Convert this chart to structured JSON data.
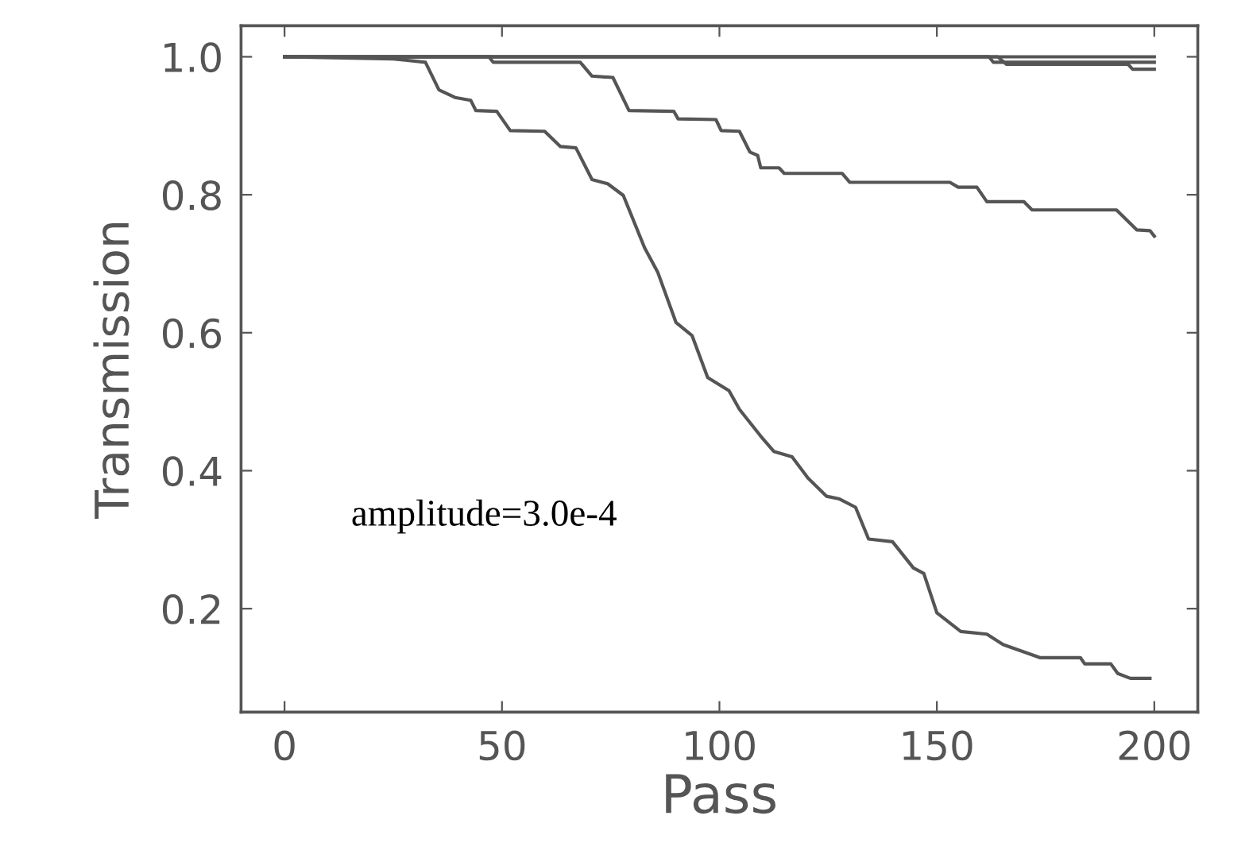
{
  "chart_data": {
    "type": "line",
    "xlabel": "Pass",
    "ylabel": "Transmission",
    "annotations": [
      "amplitude=3.0e-4"
    ],
    "xlim": [
      -10,
      210
    ],
    "ylim": [
      0.05,
      1.045
    ],
    "xticks": [
      0,
      50,
      100,
      150,
      200
    ],
    "yticks": [
      0.2,
      0.4,
      0.6,
      0.8,
      {
        "value": 1.0,
        "label": "1.0"
      }
    ],
    "grid": false,
    "legend": false,
    "marker": "none",
    "line_style": "solid",
    "series": [
      {
        "color": "#555555",
        "x": [
          0,
          200
        ],
        "values": [
          1.0,
          1.0
        ]
      },
      {
        "color": "#555555",
        "x": [
          0,
          162,
          163,
          200
        ],
        "values": [
          1.0,
          1.0,
          0.992,
          0.992
        ]
      },
      {
        "color": "#555555",
        "x": [
          0,
          164,
          166,
          194,
          195,
          200
        ],
        "values": [
          1.0,
          1.0,
          0.989,
          0.989,
          0.982,
          0.982
        ]
      },
      {
        "color": "#555555",
        "x": [
          0,
          47,
          48,
          68,
          70.7,
          75.5,
          79.2,
          89.5,
          90.5,
          99.2,
          100.4,
          104.6,
          107,
          108.8,
          109.5,
          113.7,
          114.9,
          128.2,
          130,
          153,
          154.9,
          159.2,
          161.5,
          170,
          171.9,
          191.3,
          196,
          199,
          200
        ],
        "values": [
          1.0,
          1.0,
          0.992,
          0.992,
          0.972,
          0.97,
          0.922,
          0.921,
          0.91,
          0.909,
          0.893,
          0.892,
          0.862,
          0.857,
          0.839,
          0.839,
          0.831,
          0.831,
          0.818,
          0.818,
          0.811,
          0.811,
          0.79,
          0.79,
          0.778,
          0.778,
          0.749,
          0.748,
          0.74
        ]
      },
      {
        "color": "#555555",
        "x": [
          0,
          25,
          32.4,
          35.5,
          39.2,
          42.8,
          44,
          48.8,
          51.9,
          59.8,
          63.4,
          67,
          70.7,
          74.3,
          77.9,
          82.8,
          85.8,
          90,
          93.7,
          97.3,
          102.2,
          104.6,
          109.5,
          112.5,
          116.7,
          120.4,
          124.6,
          127.6,
          131.3,
          134.3,
          139.8,
          144.6,
          147,
          150,
          155.5,
          161.5,
          165.2,
          168.8,
          173.7,
          183,
          184,
          190,
          191.6,
          194.5,
          199
        ],
        "values": [
          1.0,
          0.997,
          0.992,
          0.952,
          0.941,
          0.937,
          0.922,
          0.921,
          0.893,
          0.892,
          0.87,
          0.868,
          0.822,
          0.816,
          0.799,
          0.723,
          0.688,
          0.615,
          0.596,
          0.535,
          0.516,
          0.489,
          0.45,
          0.428,
          0.42,
          0.389,
          0.363,
          0.359,
          0.347,
          0.301,
          0.297,
          0.259,
          0.251,
          0.194,
          0.167,
          0.163,
          0.148,
          0.14,
          0.129,
          0.129,
          0.12,
          0.12,
          0.106,
          0.099,
          0.099
        ]
      }
    ]
  }
}
